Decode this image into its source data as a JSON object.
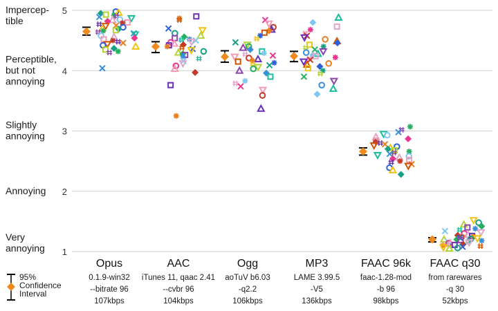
{
  "chart_data": {
    "type": "scatter",
    "title": "",
    "xlabel": "",
    "ylabel": "",
    "ylim": [
      1,
      5
    ],
    "y_ticks": [
      1,
      2,
      3,
      4,
      5
    ],
    "grid": "horizontal gridlines at 1-5",
    "y_axis_labels": [
      {
        "value": 5,
        "lines": [
          "Impercep-",
          "tible"
        ]
      },
      {
        "value": 4,
        "lines": [
          "Perceptible,",
          "but not",
          "annoying"
        ]
      },
      {
        "value": 3,
        "lines": [
          "Slightly",
          "annoying"
        ]
      },
      {
        "value": 2,
        "lines": [
          "Annoying"
        ]
      },
      {
        "value": 1,
        "lines": [
          "Very",
          "annoying"
        ]
      }
    ],
    "legend": {
      "placement": "bottom-left",
      "lines": [
        "95%",
        "Confidence",
        "Interval"
      ]
    },
    "colors": {
      "mean_marker": "#f08a1e",
      "error_bar": "#000000",
      "gridline": "#cfcfcf",
      "listener_palette": [
        "#2f5fd6",
        "#6a2fb8",
        "#e8368f",
        "#1abc9c",
        "#27ae60",
        "#f1c40f",
        "#e67e22",
        "#f39bb6",
        "#7ec8f0",
        "#8e44ad",
        "#16a085",
        "#d35400",
        "#c0392b",
        "#e4a6c7",
        "#3a8fd8",
        "#b3d334"
      ]
    },
    "categories": [
      {
        "name": "Opus",
        "details": [
          "0.1.9-win32",
          "--bitrate 96",
          "107kbps"
        ],
        "mean": 4.65,
        "ci": [
          4.59,
          4.72
        ],
        "points": [
          4.98,
          4.96,
          4.95,
          4.93,
          4.92,
          4.9,
          4.89,
          4.87,
          4.85,
          4.84,
          4.82,
          4.8,
          4.79,
          4.77,
          4.75,
          4.74,
          4.72,
          4.7,
          4.69,
          4.67,
          4.66,
          4.64,
          4.62,
          4.6,
          4.58,
          4.56,
          4.54,
          4.52,
          4.5,
          4.48,
          4.46,
          4.44,
          4.42,
          4.4,
          4.37,
          4.35,
          4.32,
          4.3,
          4.04
        ]
      },
      {
        "name": "AAC",
        "details": [
          "iTunes 11, qaac 2.41",
          "--cvbr 96",
          "104kbps"
        ],
        "mean": 4.4,
        "ci": [
          4.3,
          4.48
        ],
        "points": [
          4.9,
          4.87,
          4.84,
          4.7,
          4.67,
          4.62,
          4.58,
          4.56,
          4.54,
          4.52,
          4.51,
          4.5,
          4.48,
          4.47,
          4.45,
          4.43,
          4.42,
          4.4,
          4.38,
          4.36,
          4.34,
          4.32,
          4.3,
          4.28,
          4.26,
          4.24,
          4.2,
          4.16,
          4.12,
          4.08,
          4.03,
          3.97,
          3.76,
          3.25
        ]
      },
      {
        "name": "Ogg",
        "details": [
          "aoTuV b6.03",
          "-q2.2",
          "106kbps"
        ],
        "mean": 4.23,
        "ci": [
          4.14,
          4.33
        ],
        "points": [
          4.84,
          4.78,
          4.72,
          4.68,
          4.66,
          4.63,
          4.58,
          4.53,
          4.47,
          4.43,
          4.4,
          4.38,
          4.35,
          4.32,
          4.29,
          4.27,
          4.25,
          4.23,
          4.21,
          4.19,
          4.17,
          4.15,
          4.13,
          4.11,
          4.09,
          4.06,
          4.03,
          4.0,
          3.96,
          3.9,
          3.83,
          3.79,
          3.74,
          3.68,
          3.59,
          3.37
        ]
      },
      {
        "name": "MP3",
        "details": [
          "LAME 3.99.5",
          "-V5",
          "136kbps"
        ],
        "mean": 4.24,
        "ci": [
          4.15,
          4.32
        ],
        "points": [
          4.88,
          4.8,
          4.73,
          4.68,
          4.62,
          4.58,
          4.55,
          4.52,
          4.49,
          4.46,
          4.43,
          4.4,
          4.38,
          4.35,
          4.32,
          4.3,
          4.28,
          4.26,
          4.24,
          4.22,
          4.2,
          4.18,
          4.15,
          4.12,
          4.1,
          4.07,
          4.04,
          4.0,
          3.95,
          3.9,
          3.83,
          3.76,
          3.7,
          3.61
        ]
      },
      {
        "name": "FAAC 96k",
        "details": [
          "faac-1.28-mod",
          "-b 96",
          "98kbps"
        ],
        "mean": 2.66,
        "ci": [
          2.6,
          2.72
        ],
        "points": [
          3.07,
          3.02,
          2.98,
          2.95,
          2.93,
          2.9,
          2.87,
          2.84,
          2.82,
          2.8,
          2.78,
          2.76,
          2.74,
          2.72,
          2.7,
          2.68,
          2.66,
          2.64,
          2.62,
          2.6,
          2.58,
          2.56,
          2.54,
          2.52,
          2.5,
          2.48,
          2.45,
          2.42,
          2.39,
          2.35,
          2.28
        ]
      },
      {
        "name": "FAAC q30",
        "details": [
          "from rarewares",
          "-q 30",
          "52kbps"
        ],
        "mean": 1.2,
        "ci": [
          1.16,
          1.23
        ],
        "points": [
          1.52,
          1.48,
          1.45,
          1.42,
          1.4,
          1.38,
          1.36,
          1.34,
          1.32,
          1.3,
          1.28,
          1.27,
          1.26,
          1.25,
          1.24,
          1.23,
          1.22,
          1.21,
          1.2,
          1.2,
          1.19,
          1.18,
          1.17,
          1.16,
          1.15,
          1.14,
          1.13,
          1.12,
          1.11,
          1.1,
          1.09,
          1.08,
          1.07,
          1.06,
          1.05
        ]
      }
    ]
  }
}
